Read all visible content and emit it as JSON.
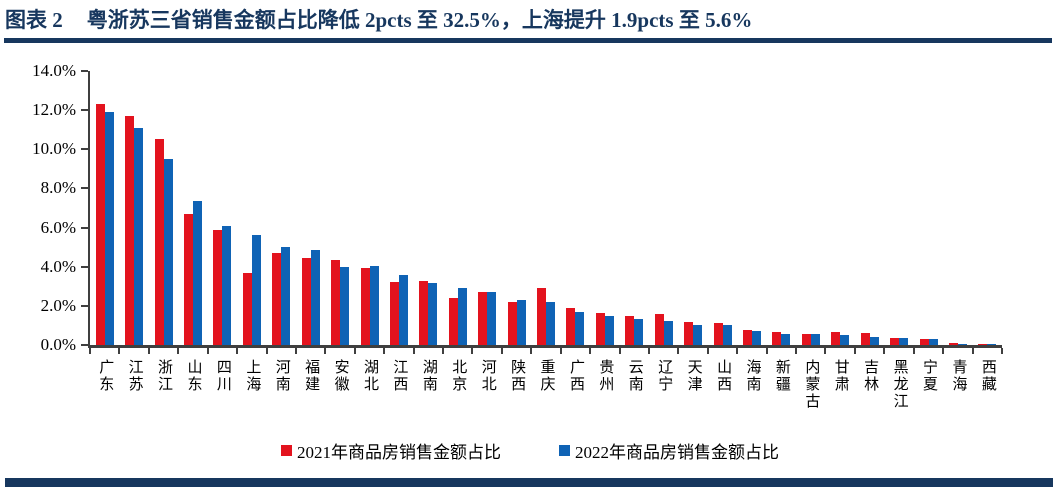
{
  "header": {
    "figure_label": "图表 2",
    "title": "粤浙苏三省销售金额占比降低 2pcts 至 32.5%，上海提升 1.9pcts 至 5.6%"
  },
  "colors": {
    "accent_navy": "#17375E",
    "series_2021_red": "#E3131E",
    "series_2022_blue": "#0F63B5",
    "axis": "#3F3F3F"
  },
  "chart_data": {
    "type": "bar",
    "title": "粤浙苏三省销售金额占比降低 2pcts 至 32.5%，上海提升 1.9pcts 至 5.6%",
    "xlabel": "",
    "ylabel": "",
    "ylim": [
      0,
      14
    ],
    "yticks": [
      "0.0%",
      "2.0%",
      "4.0%",
      "6.0%",
      "8.0%",
      "10.0%",
      "12.0%",
      "14.0%"
    ],
    "ytick_values": [
      0,
      2,
      4,
      6,
      8,
      10,
      12,
      14
    ],
    "grid": false,
    "legend_position": "bottom",
    "value_unit": "%",
    "categories": [
      "广东",
      "江苏",
      "浙江",
      "山东",
      "四川",
      "上海",
      "河南",
      "福建",
      "安徽",
      "湖北",
      "江西",
      "湖南",
      "北京",
      "河北",
      "陕西",
      "重庆",
      "广西",
      "贵州",
      "云南",
      "辽宁",
      "天津",
      "山西",
      "海南",
      "新疆",
      "内蒙古",
      "甘肃",
      "吉林",
      "黑龙江",
      "宁夏",
      "青海",
      "西藏"
    ],
    "series": [
      {
        "name": "2021年商品房销售金额占比",
        "color": "#E3131E",
        "values": [
          12.3,
          11.7,
          10.5,
          6.7,
          5.9,
          3.7,
          4.7,
          4.45,
          4.35,
          3.95,
          3.2,
          3.25,
          2.4,
          2.7,
          2.2,
          2.9,
          1.9,
          1.65,
          1.5,
          1.6,
          1.15,
          1.1,
          0.75,
          0.65,
          0.55,
          0.65,
          0.6,
          0.35,
          0.3,
          0.1,
          0.05
        ]
      },
      {
        "name": "2022年商品房销售金额占比",
        "color": "#0F63B5",
        "values": [
          11.9,
          11.1,
          9.5,
          7.35,
          6.1,
          5.6,
          5.0,
          4.85,
          4.0,
          4.05,
          3.6,
          3.15,
          2.9,
          2.7,
          2.3,
          2.2,
          1.7,
          1.5,
          1.35,
          1.25,
          1.0,
          1.0,
          0.7,
          0.55,
          0.55,
          0.5,
          0.4,
          0.35,
          0.3,
          0.05,
          0.03
        ]
      }
    ]
  }
}
